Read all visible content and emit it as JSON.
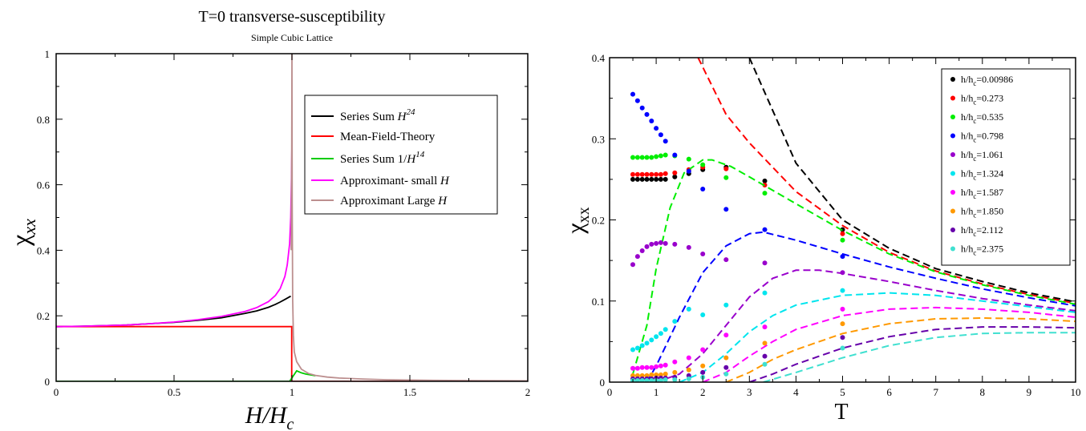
{
  "chart_data": [
    {
      "type": "line",
      "title": "T=0 transverse-susceptibility",
      "subtitle": "Simple Cubic Lattice",
      "xlabel_main": "H/H",
      "xlabel_sub": "c",
      "ylabel_main": "χ",
      "ylabel_sub": "xx",
      "xlim": [
        0,
        2
      ],
      "ylim": [
        0,
        1
      ],
      "xticks": [
        "0",
        "0.5",
        "1",
        "1.5",
        "2"
      ],
      "yticks": [
        "0",
        "0.2",
        "0.4",
        "0.6",
        "0.8",
        "1"
      ],
      "grid": false,
      "legend_position": "top-right",
      "legend": [
        {
          "text": "Series Sum ",
          "italic": "H",
          "sup": "24",
          "color": "#000000"
        },
        {
          "text": "Mean-Field-Theory",
          "italic": "",
          "sup": "",
          "color": "#ff0000"
        },
        {
          "text": "Series Sum 1/",
          "italic": "H",
          "sup": "14",
          "color": "#00cc00"
        },
        {
          "text": "Approximant- small ",
          "italic": "H",
          "sup": "",
          "color": "#ff00ff"
        },
        {
          "text": "Approximant Large ",
          "italic": "H",
          "sup": "",
          "color": "#bc8f8f"
        }
      ],
      "series": [
        {
          "name": "Series Sum H^24",
          "color": "#000000",
          "x": [
            0.0,
            0.1,
            0.2,
            0.3,
            0.4,
            0.5,
            0.6,
            0.7,
            0.8,
            0.85,
            0.9,
            0.93,
            0.95,
            0.97,
            0.985,
            0.995
          ],
          "y": [
            0.167,
            0.168,
            0.17,
            0.172,
            0.176,
            0.18,
            0.186,
            0.194,
            0.207,
            0.215,
            0.226,
            0.235,
            0.242,
            0.25,
            0.256,
            0.26
          ]
        },
        {
          "name": "Mean-Field-Theory",
          "color": "#ff0000",
          "x": [
            0.0,
            0.999,
            0.999,
            1.0,
            2.0
          ],
          "y": [
            0.167,
            0.167,
            0.0,
            0.0,
            0.0
          ]
        },
        {
          "name": "Series Sum 1/H^14",
          "color": "#00cc00",
          "x": [
            0.0,
            0.99,
            1.02,
            1.04,
            1.06,
            1.1
          ],
          "y": [
            0.0,
            0.0,
            0.032,
            0.026,
            0.022,
            0.017
          ]
        },
        {
          "name": "Approximant- small H",
          "color": "#ff00ff",
          "x": [
            0.0,
            0.1,
            0.2,
            0.3,
            0.4,
            0.5,
            0.6,
            0.7,
            0.8,
            0.85,
            0.9,
            0.93,
            0.95,
            0.97,
            0.98,
            0.99,
            0.995,
            0.998,
            1.0
          ],
          "y": [
            0.167,
            0.168,
            0.17,
            0.172,
            0.176,
            0.181,
            0.188,
            0.198,
            0.213,
            0.225,
            0.243,
            0.262,
            0.283,
            0.32,
            0.355,
            0.42,
            0.5,
            0.62,
            0.73
          ]
        },
        {
          "name": "Approximant Large H",
          "color": "#bc8f8f",
          "x": [
            0.997,
            0.999,
            1.0,
            1.001,
            1.003,
            1.006,
            1.01,
            1.02,
            1.04,
            1.07,
            1.1,
            1.15,
            1.2,
            1.3,
            1.4,
            1.5,
            1.6,
            1.8,
            2.0
          ],
          "y": [
            0.4,
            0.7,
            1.0,
            0.55,
            0.25,
            0.14,
            0.09,
            0.06,
            0.037,
            0.024,
            0.018,
            0.013,
            0.01,
            0.007,
            0.005,
            0.004,
            0.003,
            0.002,
            0.0015
          ]
        }
      ]
    },
    {
      "type": "scatter",
      "xlabel": "T",
      "ylabel_main": "χ",
      "ylabel_sub": "xx",
      "xlim": [
        0,
        10
      ],
      "ylim": [
        0,
        0.4
      ],
      "xticks": [
        "0",
        "1",
        "2",
        "3",
        "4",
        "5",
        "6",
        "7",
        "8",
        "9",
        "10"
      ],
      "yticks": [
        "0",
        "0.1",
        "0.2",
        "0.3",
        "0.4"
      ],
      "grid": false,
      "legend_position": "top-right",
      "legend_prefix": "h/h",
      "legend_sub": "c",
      "series": [
        {
          "name": "=0.00986",
          "color": "#000000",
          "points_x": [
            0.5,
            0.6,
            0.7,
            0.8,
            0.9,
            1.0,
            1.1,
            1.2,
            1.4,
            1.7,
            2.0,
            2.5,
            3.33,
            5.0
          ],
          "points_y": [
            0.25,
            0.25,
            0.25,
            0.25,
            0.25,
            0.25,
            0.25,
            0.25,
            0.253,
            0.257,
            0.262,
            0.265,
            0.248,
            0.188
          ],
          "curve_x": [
            3.0,
            4,
            5,
            6,
            7,
            8,
            9,
            10
          ],
          "curve_y": [
            0.4,
            0.27,
            0.2,
            0.165,
            0.14,
            0.124,
            0.11,
            0.099
          ]
        },
        {
          "name": "=0.273",
          "color": "#ff0000",
          "points_x": [
            0.5,
            0.6,
            0.7,
            0.8,
            0.9,
            1.0,
            1.1,
            1.2,
            1.4,
            1.7,
            2.0,
            2.5,
            3.33,
            5.0
          ],
          "points_y": [
            0.256,
            0.256,
            0.256,
            0.256,
            0.256,
            0.256,
            0.256,
            0.257,
            0.258,
            0.262,
            0.265,
            0.263,
            0.243,
            0.183
          ],
          "curve_x": [
            1.9,
            2.5,
            3,
            4,
            5,
            6,
            7,
            8,
            9,
            10
          ],
          "curve_y": [
            0.4,
            0.33,
            0.295,
            0.235,
            0.193,
            0.16,
            0.137,
            0.121,
            0.108,
            0.097
          ]
        },
        {
          "name": "=0.535",
          "color": "#00ee00",
          "points_x": [
            0.5,
            0.6,
            0.7,
            0.8,
            0.9,
            1.0,
            1.1,
            1.2,
            1.4,
            1.7,
            2.0,
            2.5,
            3.33,
            5.0
          ],
          "points_y": [
            0.277,
            0.277,
            0.277,
            0.277,
            0.277,
            0.278,
            0.279,
            0.28,
            0.279,
            0.275,
            0.268,
            0.252,
            0.233,
            0.175
          ],
          "curve_x": [
            0.5,
            0.8,
            1.0,
            1.3,
            1.6,
            2.0,
            2.2,
            2.6,
            3.0,
            4,
            5,
            6,
            7,
            8,
            9,
            10
          ],
          "curve_y": [
            0.01,
            0.07,
            0.14,
            0.215,
            0.258,
            0.274,
            0.274,
            0.266,
            0.253,
            0.22,
            0.187,
            0.158,
            0.136,
            0.12,
            0.107,
            0.096
          ]
        },
        {
          "name": "=0.798",
          "color": "#0000ff",
          "points_x": [
            0.5,
            0.6,
            0.7,
            0.8,
            0.9,
            1.0,
            1.1,
            1.2,
            1.4,
            1.7,
            2.0,
            2.5,
            3.33,
            5.0
          ],
          "points_y": [
            0.355,
            0.347,
            0.338,
            0.33,
            0.322,
            0.313,
            0.305,
            0.297,
            0.28,
            0.26,
            0.238,
            0.213,
            0.188,
            0.155
          ],
          "curve_x": [
            0.8,
            1.0,
            1.5,
            2.0,
            2.5,
            3.0,
            3.3,
            4,
            5,
            6,
            7,
            8,
            9,
            10
          ],
          "curve_y": [
            0.0,
            0.02,
            0.08,
            0.135,
            0.168,
            0.183,
            0.185,
            0.175,
            0.158,
            0.142,
            0.128,
            0.115,
            0.104,
            0.094
          ]
        },
        {
          "name": "=1.061",
          "color": "#9900cc",
          "points_x": [
            0.5,
            0.6,
            0.7,
            0.8,
            0.9,
            1.0,
            1.1,
            1.2,
            1.4,
            1.7,
            2.0,
            2.5,
            3.33,
            5.0
          ],
          "points_y": [
            0.145,
            0.155,
            0.162,
            0.167,
            0.17,
            0.171,
            0.172,
            0.171,
            0.17,
            0.166,
            0.158,
            0.151,
            0.147,
            0.135
          ],
          "curve_x": [
            1.0,
            1.5,
            2.0,
            2.5,
            3.0,
            3.5,
            4.0,
            4.5,
            5,
            6,
            7,
            8,
            9,
            10
          ],
          "curve_y": [
            0.0,
            0.01,
            0.035,
            0.07,
            0.105,
            0.128,
            0.138,
            0.138,
            0.134,
            0.124,
            0.113,
            0.103,
            0.095,
            0.088
          ]
        },
        {
          "name": "=1.324",
          "color": "#00e5ee",
          "points_x": [
            0.5,
            0.6,
            0.7,
            0.8,
            0.9,
            1.0,
            1.1,
            1.2,
            1.4,
            1.7,
            2.0,
            2.5,
            3.33,
            5.0
          ],
          "points_y": [
            0.04,
            0.042,
            0.045,
            0.048,
            0.052,
            0.056,
            0.06,
            0.065,
            0.075,
            0.09,
            0.083,
            0.095,
            0.11,
            0.113
          ],
          "curve_x": [
            1.5,
            2.0,
            2.5,
            3.0,
            3.5,
            4,
            5,
            6,
            7,
            8,
            9,
            10
          ],
          "curve_y": [
            0.0,
            0.012,
            0.035,
            0.062,
            0.082,
            0.095,
            0.107,
            0.11,
            0.107,
            0.1,
            0.093,
            0.086
          ]
        },
        {
          "name": "=1.587",
          "color": "#ff00ff",
          "points_x": [
            0.5,
            0.6,
            0.7,
            0.8,
            0.9,
            1.0,
            1.1,
            1.2,
            1.4,
            1.7,
            2.0,
            2.5,
            3.33,
            5.0
          ],
          "points_y": [
            0.017,
            0.017,
            0.018,
            0.018,
            0.018,
            0.019,
            0.02,
            0.021,
            0.025,
            0.03,
            0.04,
            0.058,
            0.068,
            0.09
          ],
          "curve_x": [
            2.0,
            2.5,
            3.0,
            3.5,
            4,
            5,
            6,
            7,
            8,
            9,
            10
          ],
          "curve_y": [
            0.0,
            0.012,
            0.032,
            0.05,
            0.065,
            0.082,
            0.09,
            0.092,
            0.09,
            0.086,
            0.08
          ]
        },
        {
          "name": "=1.850",
          "color": "#ff9900",
          "points_x": [
            0.5,
            0.6,
            0.7,
            0.8,
            0.9,
            1.0,
            1.1,
            1.2,
            1.4,
            1.7,
            2.0,
            2.5,
            3.33,
            5.0
          ],
          "points_y": [
            0.008,
            0.008,
            0.008,
            0.008,
            0.009,
            0.009,
            0.009,
            0.01,
            0.012,
            0.015,
            0.02,
            0.03,
            0.048,
            0.072
          ],
          "curve_x": [
            2.5,
            3.0,
            3.5,
            4,
            5,
            6,
            7,
            8,
            9,
            10
          ],
          "curve_y": [
            0.0,
            0.012,
            0.028,
            0.04,
            0.06,
            0.072,
            0.078,
            0.079,
            0.078,
            0.075
          ]
        },
        {
          "name": "=2.112",
          "color": "#6600aa",
          "points_x": [
            0.5,
            0.6,
            0.7,
            0.8,
            0.9,
            1.0,
            1.1,
            1.2,
            1.4,
            1.7,
            2.0,
            2.5,
            3.33,
            5.0
          ],
          "points_y": [
            0.004,
            0.004,
            0.004,
            0.004,
            0.004,
            0.005,
            0.005,
            0.005,
            0.006,
            0.008,
            0.012,
            0.018,
            0.032,
            0.055
          ],
          "curve_x": [
            3.0,
            3.5,
            4,
            5,
            6,
            7,
            8,
            9,
            10
          ],
          "curve_y": [
            0.0,
            0.01,
            0.022,
            0.042,
            0.056,
            0.065,
            0.068,
            0.068,
            0.067
          ]
        },
        {
          "name": "=2.375",
          "color": "#40e0d0",
          "points_x": [
            0.5,
            0.6,
            0.7,
            0.8,
            0.9,
            1.0,
            1.1,
            1.2,
            1.4,
            1.7,
            2.0,
            2.5,
            3.33,
            5.0
          ],
          "points_y": [
            0.002,
            0.002,
            0.002,
            0.002,
            0.002,
            0.002,
            0.002,
            0.003,
            0.003,
            0.004,
            0.006,
            0.01,
            0.022,
            0.042
          ],
          "curve_x": [
            3.3,
            4,
            5,
            6,
            7,
            8,
            9,
            10
          ],
          "curve_y": [
            0.0,
            0.012,
            0.03,
            0.045,
            0.055,
            0.06,
            0.061,
            0.061
          ]
        }
      ]
    }
  ]
}
